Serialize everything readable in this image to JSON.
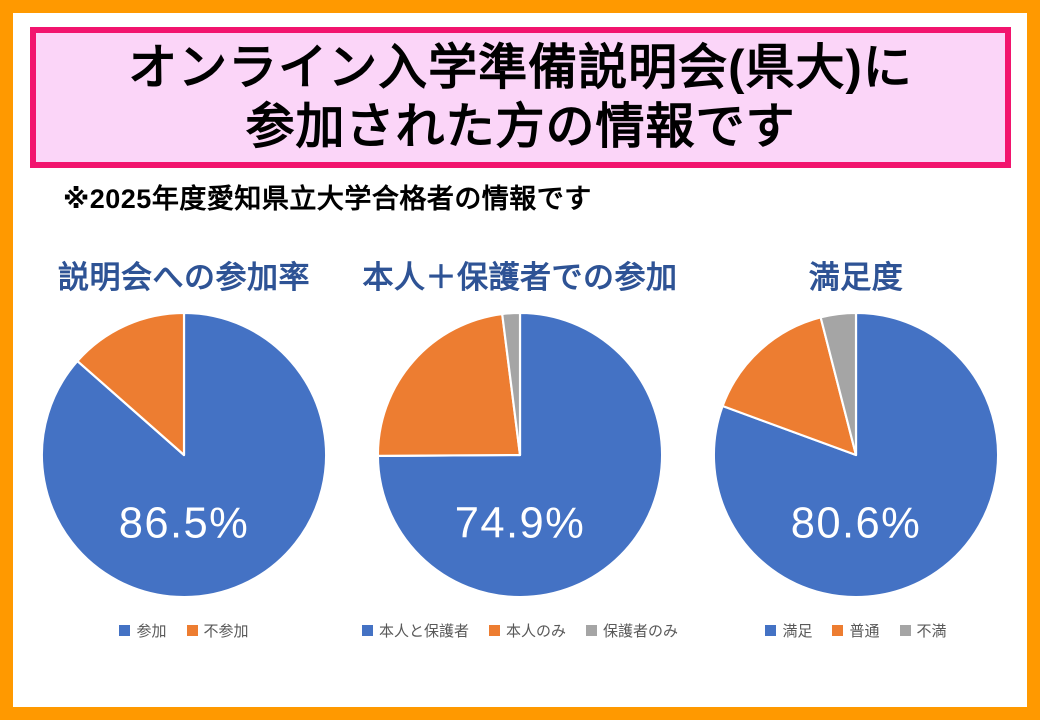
{
  "page": {
    "frame_color": "#FF9900",
    "title_box": {
      "border_color": "#F2146E",
      "bg_color": "#FBD5F8",
      "line1": "オンライン入学準備説明会(県大)に",
      "line2": "参加された方の情報です"
    },
    "subtitle": "※2025年度愛知県立大学合格者の情報です",
    "chart_title_color": "#2E5395",
    "legend_text_color": "#595959"
  },
  "chart_data": [
    {
      "type": "pie",
      "title": "説明会への参加率",
      "center_label": "86.5%",
      "labels": [
        "参加",
        "不参加"
      ],
      "values": [
        86.5,
        13.5
      ],
      "colors": [
        "#4472C4",
        "#ED7D31"
      ],
      "start_angle_deg": 0,
      "direction": "clockwise",
      "legend_position": "bottom",
      "slice_border_color": "#FFFFFF",
      "center_label_color": "#FFFFFF"
    },
    {
      "type": "pie",
      "title": "本人＋保護者での参加",
      "center_label": "74.9%",
      "labels": [
        "本人と保護者",
        "本人のみ",
        "保護者のみ"
      ],
      "values": [
        74.9,
        23.1,
        2.0
      ],
      "colors": [
        "#4472C4",
        "#ED7D31",
        "#A5A5A5"
      ],
      "start_angle_deg": 0,
      "direction": "clockwise",
      "legend_position": "bottom",
      "slice_border_color": "#FFFFFF",
      "center_label_color": "#FFFFFF"
    },
    {
      "type": "pie",
      "title": "満足度",
      "center_label": "80.6%",
      "labels": [
        "満足",
        "普通",
        "不満"
      ],
      "values": [
        80.6,
        15.4,
        4.0
      ],
      "colors": [
        "#4472C4",
        "#ED7D31",
        "#A5A5A5"
      ],
      "start_angle_deg": 0,
      "direction": "clockwise",
      "legend_position": "bottom",
      "slice_border_color": "#FFFFFF",
      "center_label_color": "#FFFFFF"
    }
  ]
}
